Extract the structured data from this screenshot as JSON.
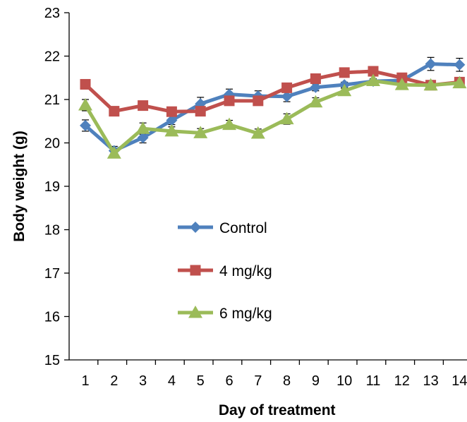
{
  "chart_data": {
    "type": "line",
    "xlabel": "Day of treatment",
    "ylabel": "Body weight (g)",
    "ylim": [
      15,
      23
    ],
    "yticks": [
      15,
      16,
      17,
      18,
      19,
      20,
      21,
      22,
      23
    ],
    "x": [
      1,
      2,
      3,
      4,
      5,
      6,
      7,
      8,
      9,
      10,
      11,
      12,
      13,
      14
    ],
    "grid": false,
    "legend_position": "center-left",
    "series": [
      {
        "name": "Control",
        "color": "#4F81BD",
        "marker": "diamond",
        "values": [
          20.4,
          19.82,
          20.12,
          20.52,
          20.9,
          21.12,
          21.08,
          21.07,
          21.28,
          21.34,
          21.42,
          21.44,
          21.82,
          21.8
        ],
        "errors": [
          0.13,
          0.1,
          0.12,
          0.1,
          0.15,
          0.12,
          0.12,
          0.12,
          0.08,
          0.06,
          0.05,
          0.05,
          0.15,
          0.15
        ]
      },
      {
        "name": "4 mg/kg",
        "color": "#C0504D",
        "marker": "square",
        "values": [
          21.35,
          20.73,
          20.86,
          20.72,
          20.73,
          20.97,
          20.97,
          21.27,
          21.48,
          21.62,
          21.65,
          21.5,
          21.33,
          21.4
        ],
        "errors": [
          0.05,
          0.05,
          0.05,
          0.05,
          0.05,
          0.05,
          0.05,
          0.05,
          0.05,
          0.05,
          0.05,
          0.05,
          0.05,
          0.05
        ]
      },
      {
        "name": "6 mg/kg",
        "color": "#9BBB59",
        "marker": "triangle",
        "values": [
          20.87,
          19.76,
          20.33,
          20.27,
          20.23,
          20.42,
          20.22,
          20.55,
          20.94,
          21.2,
          21.43,
          21.34,
          21.33,
          21.38
        ],
        "errors": [
          0.13,
          0.08,
          0.13,
          0.1,
          0.1,
          0.1,
          0.1,
          0.12,
          0.1,
          0.06,
          0.05,
          0.05,
          0.05,
          0.05
        ]
      }
    ]
  }
}
